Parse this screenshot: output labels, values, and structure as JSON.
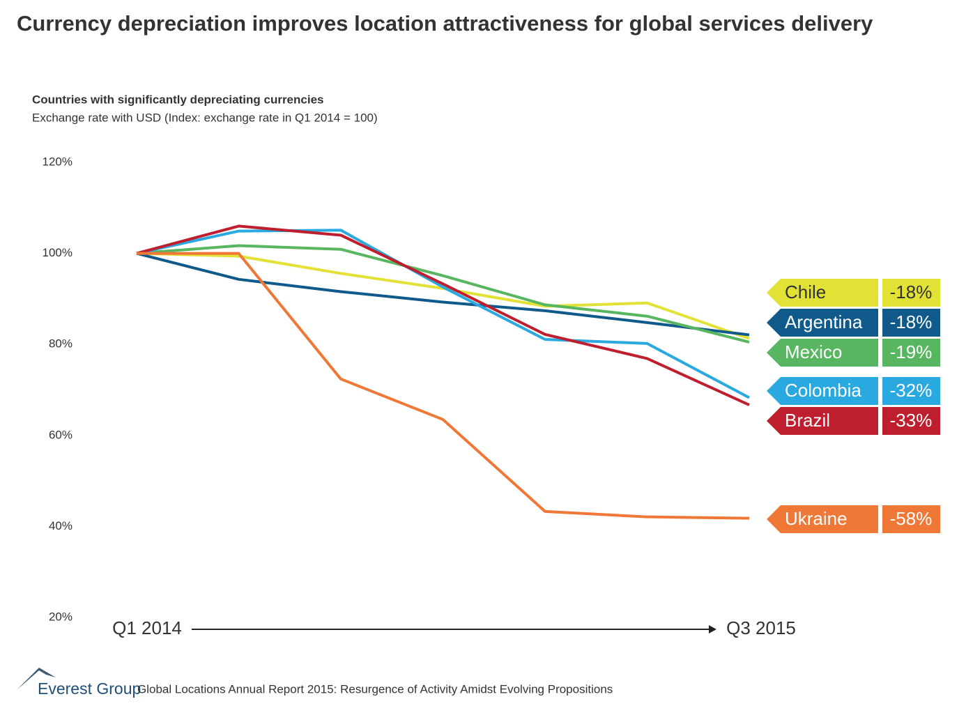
{
  "chart_data": {
    "type": "line",
    "title": "Currency depreciation improves location attractiveness for global services delivery",
    "subtitle": "Countries with significantly depreciating currencies",
    "y_axis_label": "Exchange rate with USD (Index: exchange rate in Q1 2014 = 100)",
    "categories": [
      "Q1 2014",
      null,
      null,
      null,
      null,
      null,
      "Q3 2015"
    ],
    "ylim": [
      20,
      120
    ],
    "yticks": [
      {
        "value": 20,
        "label": "20%"
      },
      {
        "value": 40,
        "label": "40%"
      },
      {
        "value": 60,
        "label": "60%"
      },
      {
        "value": 80,
        "label": "80%"
      },
      {
        "value": 100,
        "label": "100%"
      },
      {
        "value": 120,
        "label": "120%"
      }
    ],
    "series": [
      {
        "name": "Chile",
        "color": "#e2e236",
        "values": [
          100,
          99.4,
          95.6,
          92.3,
          88.4,
          89.1,
          81.3
        ],
        "change_label": "-18%"
      },
      {
        "name": "Argentina",
        "color": "#0f5a8a",
        "values": [
          100,
          94.3,
          91.6,
          89.3,
          87.4,
          84.8,
          82.1
        ],
        "change_label": "-18%"
      },
      {
        "name": "Mexico",
        "color": "#58b661",
        "values": [
          100,
          101.7,
          100.9,
          95.1,
          88.7,
          86.2,
          80.5
        ],
        "change_label": "-19%"
      },
      {
        "name": "Colombia",
        "color": "#2aa9e0",
        "values": [
          100,
          104.9,
          105.1,
          92.6,
          81.1,
          80.2,
          68.3
        ],
        "change_label": "-32%"
      },
      {
        "name": "Brazil",
        "color": "#be1e2d",
        "values": [
          100,
          106,
          104,
          93.3,
          82.2,
          76.9,
          66.7
        ],
        "change_label": "-33%"
      },
      {
        "name": "Ukraine",
        "color": "#f07836",
        "values": [
          100,
          100,
          72.4,
          63.5,
          43.3,
          42.1,
          41.8
        ],
        "change_label": "-58%"
      }
    ],
    "footer": {
      "brand": "Everest Group",
      "source": "Global Locations Annual Report 2015: Resurgence of Activity Amidst Evolving Propositions"
    }
  }
}
